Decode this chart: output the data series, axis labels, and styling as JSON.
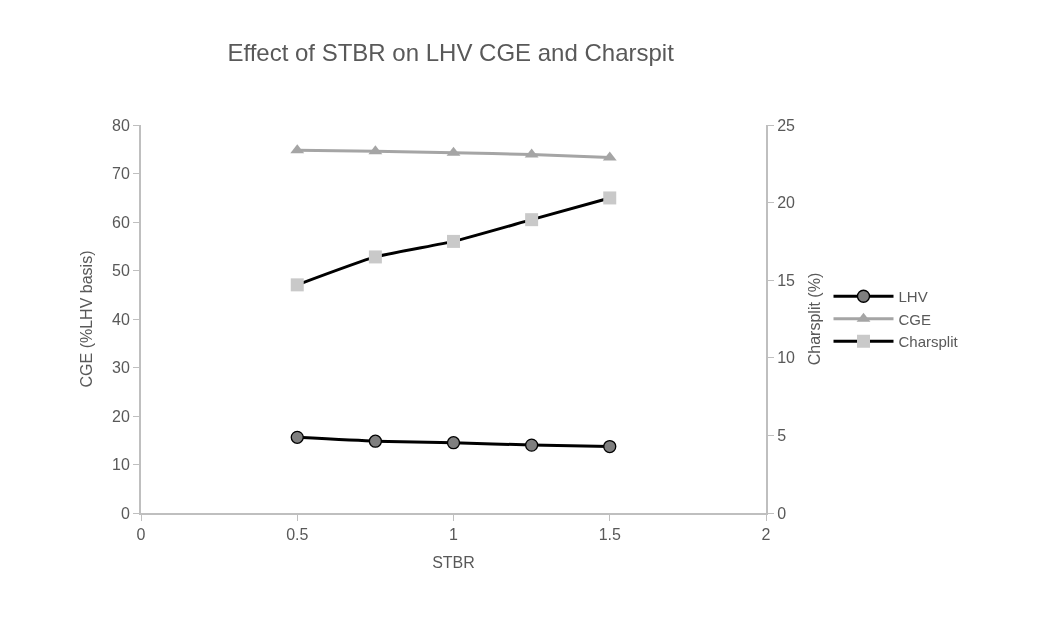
{
  "chart_data": {
    "type": "line",
    "title": "Effect of STBR on LHV CGE and Charspit",
    "xlabel": "STBR",
    "ylabel": "CGE (%LHV basis)",
    "y2label": "Charsplit (%)",
    "x": [
      0.5,
      0.75,
      1,
      1.25,
      1.5
    ],
    "series": [
      {
        "name": "LHV",
        "color": "#000000",
        "colors": [
          "#7f7f7f",
          "#7f7f7f",
          "#7f7f7f",
          "#7f7f7f",
          "#7f7f7f"
        ],
        "marker": "circle",
        "values": [
          15.6,
          14.8,
          14.5,
          14.0,
          13.7
        ]
      },
      {
        "name": "CGE",
        "color": "#a5a5a5",
        "colors": [
          "#a5a5a5",
          "#a5a5a5",
          "#a5a5a5",
          "#a5a5a5",
          "#a5a5a5"
        ],
        "marker": "triangle",
        "values": [
          74.8,
          74.6,
          74.3,
          73.9,
          73.3
        ]
      },
      {
        "name": "Charsplit",
        "color": "#000000",
        "colors": [
          "#c9c9c9",
          "#c9c9c9",
          "#c9c9c9",
          "#c9c9c9",
          "#c9c9c9"
        ],
        "marker": "square",
        "axis": "y2",
        "values": [
          14.7,
          16.5,
          17.5,
          18.9,
          20.3
        ]
      }
    ],
    "xlim": [
      0,
      2
    ],
    "xticks": [
      0,
      0.5,
      1,
      1.5,
      2
    ],
    "ylim": [
      0,
      80
    ],
    "yticks": [
      0,
      10,
      20,
      30,
      40,
      50,
      60,
      70,
      80
    ],
    "y2lim": [
      0,
      25
    ],
    "y2ticks": [
      0,
      5,
      10,
      15,
      20,
      25
    ],
    "legend": "right"
  }
}
